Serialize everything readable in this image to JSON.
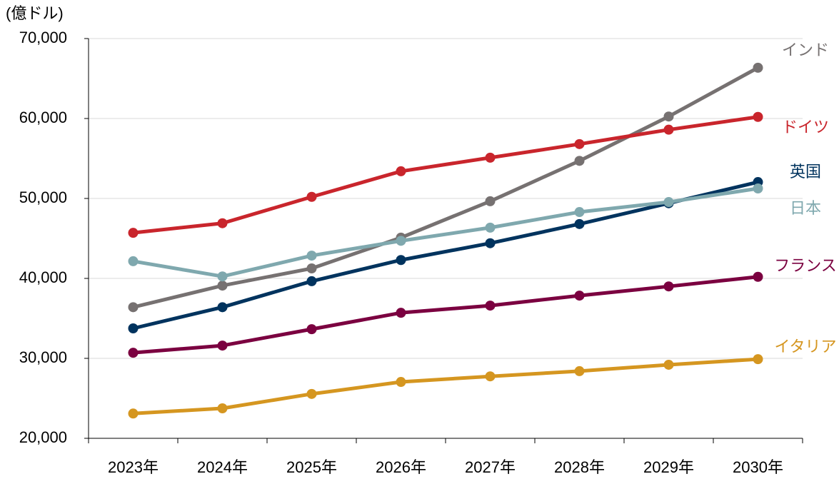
{
  "chart_data": {
    "type": "line",
    "y_label": "(億ドル)",
    "categories": [
      "2023年",
      "2024年",
      "2025年",
      "2026年",
      "2027年",
      "2028年",
      "2029年",
      "2030年"
    ],
    "series": [
      {
        "name": "インド",
        "color": "#767171",
        "values": [
          36400,
          39100,
          41250,
          45100,
          49650,
          54700,
          60250,
          66350
        ]
      },
      {
        "name": "ドイツ",
        "color": "#c9252c",
        "values": [
          45700,
          46900,
          50200,
          53400,
          55100,
          56800,
          58600,
          60200
        ]
      },
      {
        "name": "英国",
        "color": "#00335e",
        "values": [
          33750,
          36400,
          39650,
          42300,
          44400,
          46800,
          49400,
          52050
        ]
      },
      {
        "name": "日本",
        "color": "#7fa8ae",
        "values": [
          42150,
          40250,
          42850,
          44700,
          46350,
          48300,
          49550,
          51250
        ]
      },
      {
        "name": "フランス",
        "color": "#7b0040",
        "values": [
          30700,
          31600,
          33650,
          35700,
          36600,
          37850,
          39000,
          40200
        ]
      },
      {
        "name": "イタリア",
        "color": "#d59620",
        "values": [
          23100,
          23750,
          25550,
          27050,
          27750,
          28400,
          29200,
          29900
        ]
      }
    ],
    "ylim": [
      20000,
      70000
    ],
    "yticks": [
      {
        "value": 20000,
        "label": "20,000"
      },
      {
        "value": 30000,
        "label": "30,000"
      },
      {
        "value": 40000,
        "label": "40,000"
      },
      {
        "value": 50000,
        "label": "50,000"
      },
      {
        "value": 60000,
        "label": "60,000"
      },
      {
        "value": 70000,
        "label": "70,000"
      }
    ],
    "grid": true
  }
}
